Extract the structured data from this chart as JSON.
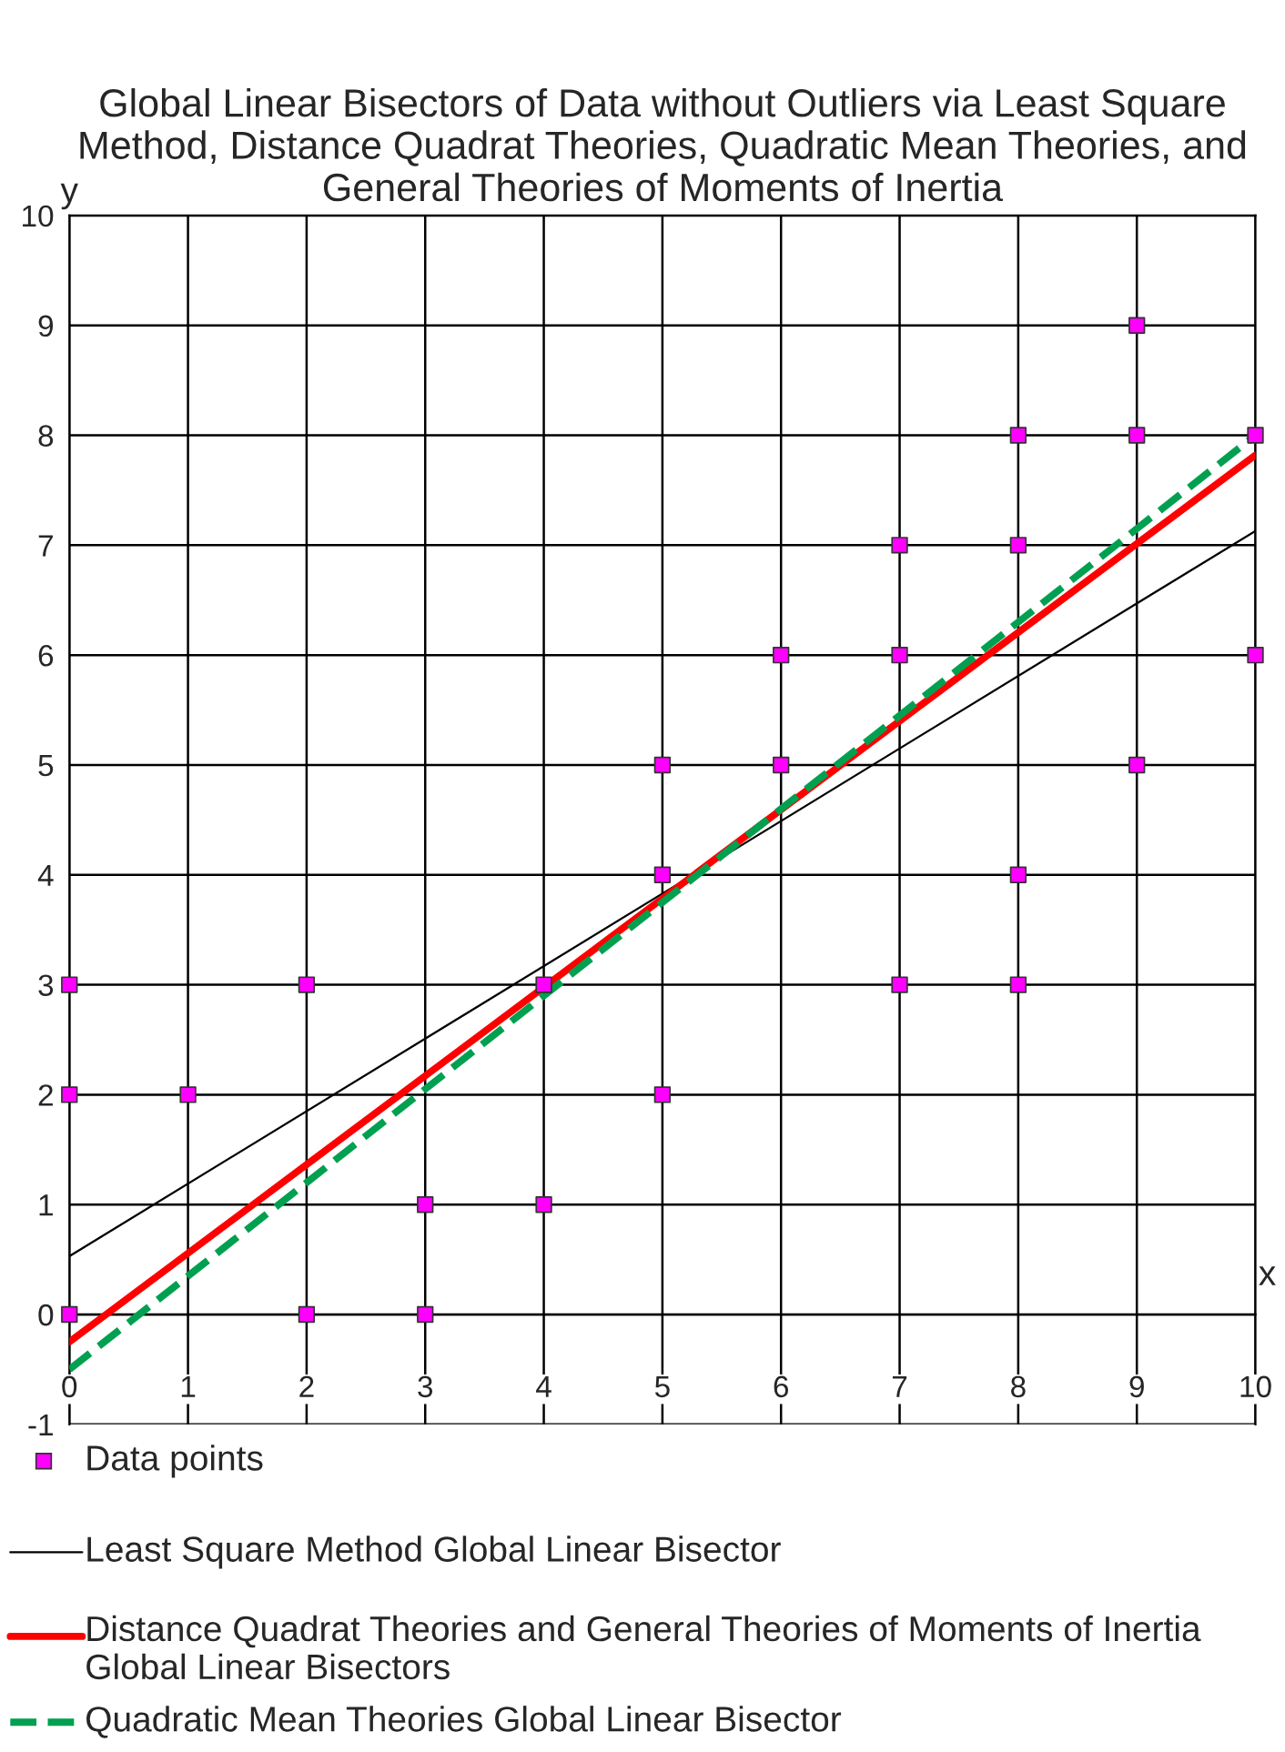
{
  "chart_data": {
    "type": "scatter",
    "title": "Global Linear Bisectors of Data without Outliers via Least Square Method, Distance Quadrat Theories, Quadratic Mean Theories, and General Theories of Moments of Inertia",
    "xlabel": "x",
    "ylabel": "y",
    "xlim": [
      0,
      10
    ],
    "ylim": [
      -1,
      10
    ],
    "xticks": [
      0,
      1,
      2,
      3,
      4,
      5,
      6,
      7,
      8,
      9,
      10
    ],
    "yticks": [
      -1,
      0,
      1,
      2,
      3,
      4,
      5,
      6,
      7,
      8,
      9,
      10
    ],
    "grid": true,
    "legend": "bottom",
    "series": [
      {
        "name": "Data points",
        "type": "scatter",
        "color": "#ff00ff",
        "marker": "square",
        "x": [
          0,
          0,
          0,
          1,
          2,
          2,
          3,
          3,
          4,
          4,
          5,
          5,
          5,
          6,
          6,
          7,
          7,
          7,
          8,
          8,
          8,
          8,
          9,
          9,
          9,
          10,
          10
        ],
        "values": [
          0,
          2,
          3,
          2,
          0,
          3,
          0,
          1,
          1,
          3,
          2,
          4,
          5,
          5,
          6,
          3,
          6,
          7,
          3,
          4,
          7,
          8,
          5,
          8,
          9,
          6,
          8
        ]
      },
      {
        "name": "Least Square Method Global Linear Bisector",
        "type": "line",
        "color": "#000000",
        "line_style": "solid",
        "marker": "none",
        "x": [
          0,
          10
        ],
        "values": [
          0.53,
          7.13
        ]
      },
      {
        "name": "Distance Quadrat Theories and General Theories of Moments of Inertia Global Linear Bisectors",
        "type": "line",
        "color": "#ff0000",
        "line_style": "solid",
        "marker": "none",
        "x": [
          0,
          10
        ],
        "values": [
          -0.25,
          7.82
        ]
      },
      {
        "name": "Quadratic Mean Theories Global Linear Bisector",
        "type": "line",
        "color": "#00a050",
        "line_style": "dashed",
        "marker": "none",
        "x": [
          0,
          10
        ],
        "values": [
          -0.5,
          8.0
        ]
      }
    ]
  }
}
